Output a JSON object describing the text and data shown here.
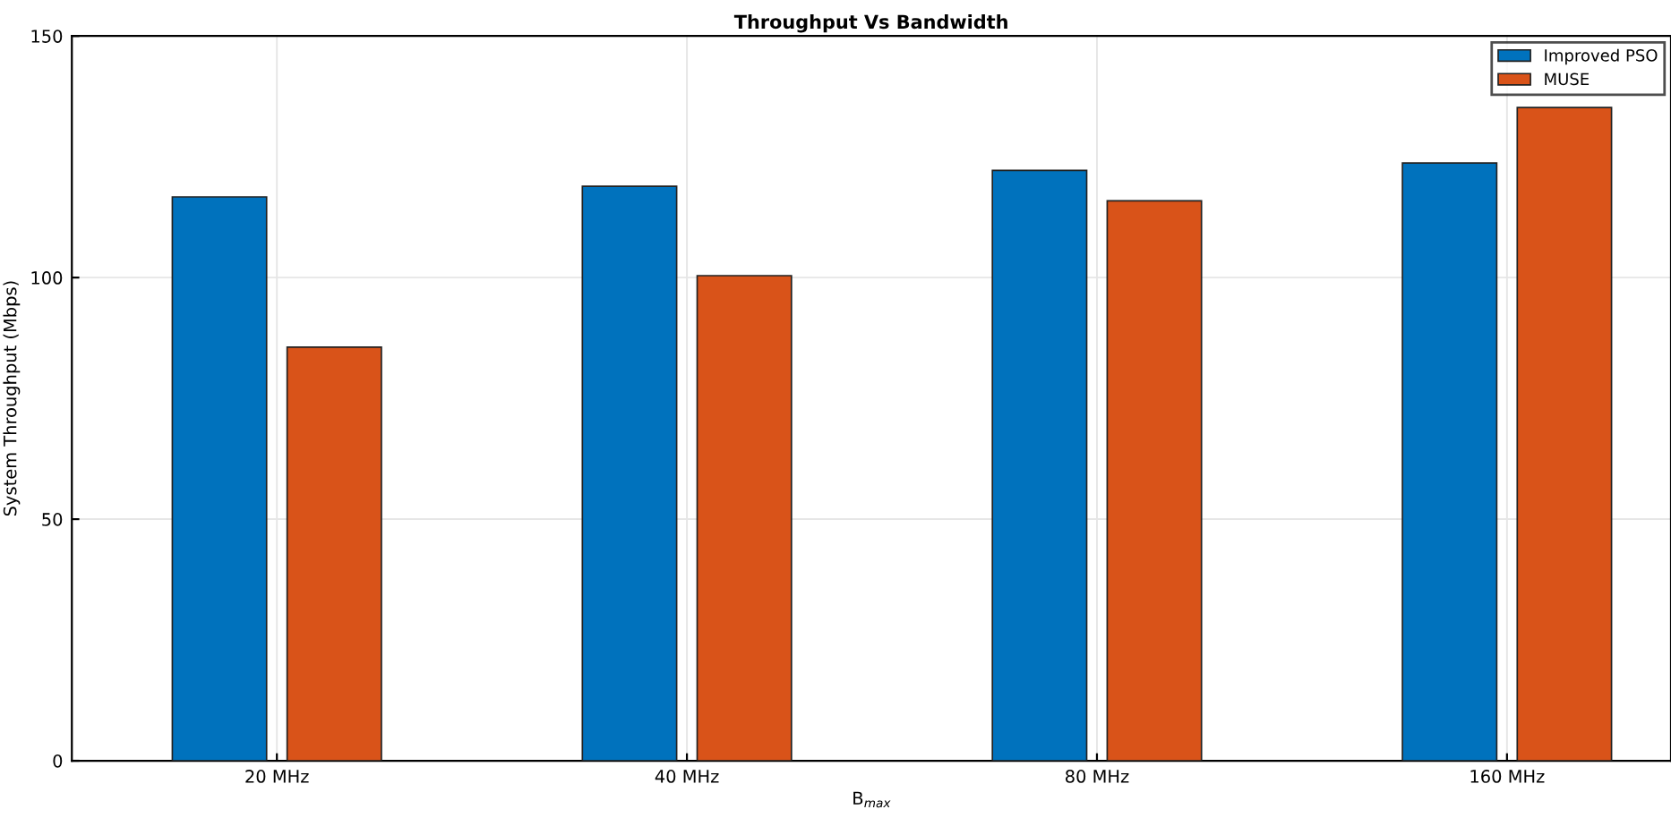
{
  "chart_data": {
    "type": "bar",
    "title": "Throughput Vs Bandwidth",
    "xlabel": "B$_{max}$",
    "ylabel": "System Throughput (Mbps)",
    "categories": [
      "20 MHz",
      "40 MHz",
      "80 MHz",
      "160 MHz"
    ],
    "series": [
      {
        "name": "Improved PSO",
        "color": "#0072bd",
        "values": [
          116.7,
          118.9,
          122.2,
          123.7
        ]
      },
      {
        "name": "MUSE",
        "color": "#d95319",
        "values": [
          85.6,
          100.4,
          115.9,
          135.2
        ]
      }
    ],
    "ylim": [
      0,
      150
    ],
    "yticks": [
      0,
      50,
      100,
      150
    ],
    "grid": true,
    "legend": "top right"
  }
}
